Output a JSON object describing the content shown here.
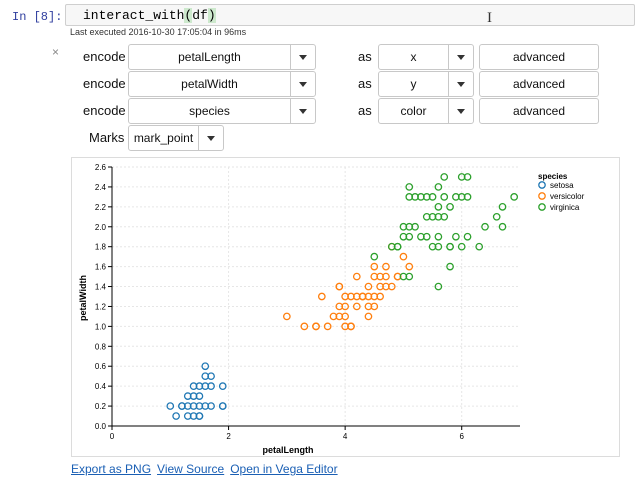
{
  "cell": {
    "prompt": "In [8]:",
    "code_prefix": "interact_with",
    "code_open": "(",
    "code_arg": "df",
    "code_close": ")",
    "exec_info": "Last executed 2016-10-30 17:05:04 in 96ms"
  },
  "widget": {
    "close_glyph": "×",
    "rows": [
      {
        "label": "encode",
        "field": "petalLength",
        "as_label": "as",
        "channel": "x",
        "advanced": "advanced"
      },
      {
        "label": "encode",
        "field": "petalWidth",
        "as_label": "as",
        "channel": "y",
        "advanced": "advanced"
      },
      {
        "label": "encode",
        "field": "species",
        "as_label": "as",
        "channel": "color",
        "advanced": "advanced"
      }
    ],
    "marks_label": "Marks",
    "marks_value": "mark_point"
  },
  "links": {
    "export_png": "Export as PNG",
    "view_source": "View Source",
    "open_vega": "Open in Vega Editor"
  },
  "chart_data": {
    "type": "scatter",
    "xlabel": "petalLength",
    "ylabel": "petalWidth",
    "xlim": [
      0,
      7
    ],
    "ylim": [
      0,
      2.6
    ],
    "xticks": [
      0,
      2,
      4,
      6
    ],
    "yticks": [
      0.0,
      0.2,
      0.4,
      0.6,
      0.8,
      1.0,
      1.2,
      1.4,
      1.6,
      1.8,
      2.0,
      2.2,
      2.4,
      2.6
    ],
    "grid": true,
    "legend_title": "species",
    "legend_position": "top-right",
    "series": [
      {
        "name": "setosa",
        "color": "#1f77b4",
        "points": [
          [
            1.0,
            0.2
          ],
          [
            1.1,
            0.1
          ],
          [
            1.2,
            0.2
          ],
          [
            1.3,
            0.2
          ],
          [
            1.4,
            0.2
          ],
          [
            1.5,
            0.2
          ],
          [
            1.6,
            0.2
          ],
          [
            1.7,
            0.2
          ],
          [
            1.9,
            0.2
          ],
          [
            1.3,
            0.3
          ],
          [
            1.4,
            0.3
          ],
          [
            1.5,
            0.3
          ],
          [
            1.4,
            0.4
          ],
          [
            1.5,
            0.4
          ],
          [
            1.6,
            0.4
          ],
          [
            1.7,
            0.4
          ],
          [
            1.9,
            0.4
          ],
          [
            1.3,
            0.1
          ],
          [
            1.4,
            0.1
          ],
          [
            1.5,
            0.1
          ],
          [
            1.6,
            0.5
          ],
          [
            1.7,
            0.5
          ],
          [
            1.6,
            0.6
          ],
          [
            1.2,
            0.2
          ],
          [
            1.5,
            0.1
          ],
          [
            1.9,
            0.2
          ]
        ]
      },
      {
        "name": "versicolor",
        "color": "#ff7f0e",
        "points": [
          [
            3.0,
            1.1
          ],
          [
            3.3,
            1.0
          ],
          [
            3.5,
            1.0
          ],
          [
            3.7,
            1.0
          ],
          [
            4.0,
            1.0
          ],
          [
            4.1,
            1.0
          ],
          [
            3.6,
            1.3
          ],
          [
            3.5,
            1.0
          ],
          [
            3.8,
            1.1
          ],
          [
            3.9,
            1.1
          ],
          [
            4.0,
            1.1
          ],
          [
            3.9,
            1.2
          ],
          [
            4.0,
            1.2
          ],
          [
            4.2,
            1.2
          ],
          [
            4.4,
            1.2
          ],
          [
            4.5,
            1.2
          ],
          [
            3.9,
            1.4
          ],
          [
            4.0,
            1.3
          ],
          [
            4.1,
            1.3
          ],
          [
            4.2,
            1.3
          ],
          [
            4.3,
            1.3
          ],
          [
            4.4,
            1.3
          ],
          [
            4.5,
            1.3
          ],
          [
            4.6,
            1.3
          ],
          [
            4.7,
            1.4
          ],
          [
            4.8,
            1.4
          ],
          [
            4.9,
            1.5
          ],
          [
            4.5,
            1.5
          ],
          [
            4.6,
            1.5
          ],
          [
            4.7,
            1.5
          ],
          [
            4.8,
            1.8
          ],
          [
            4.5,
            1.6
          ],
          [
            4.7,
            1.6
          ],
          [
            5.1,
            1.6
          ],
          [
            4.9,
            1.5
          ],
          [
            5.0,
            1.7
          ],
          [
            4.1,
            1.0
          ],
          [
            4.4,
            1.4
          ],
          [
            4.3,
            1.3
          ],
          [
            4.2,
            1.5
          ],
          [
            3.9,
            1.4
          ],
          [
            4.4,
            1.1
          ],
          [
            4.6,
            1.4
          ]
        ]
      },
      {
        "name": "virginica",
        "color": "#2ca02c",
        "points": [
          [
            4.5,
            1.7
          ],
          [
            4.8,
            1.8
          ],
          [
            4.9,
            1.8
          ],
          [
            5.0,
            1.5
          ],
          [
            5.1,
            1.5
          ],
          [
            5.6,
            1.4
          ],
          [
            5.0,
            2.0
          ],
          [
            5.1,
            1.9
          ],
          [
            5.1,
            2.0
          ],
          [
            5.1,
            2.3
          ],
          [
            5.1,
            2.4
          ],
          [
            5.2,
            2.0
          ],
          [
            5.2,
            2.3
          ],
          [
            5.3,
            1.9
          ],
          [
            5.3,
            2.3
          ],
          [
            5.4,
            2.1
          ],
          [
            5.4,
            2.3
          ],
          [
            5.5,
            1.8
          ],
          [
            5.5,
            2.1
          ],
          [
            5.5,
            2.3
          ],
          [
            5.6,
            1.8
          ],
          [
            5.6,
            2.1
          ],
          [
            5.6,
            2.2
          ],
          [
            5.6,
            2.4
          ],
          [
            5.7,
            2.1
          ],
          [
            5.7,
            2.3
          ],
          [
            5.7,
            2.5
          ],
          [
            5.8,
            1.6
          ],
          [
            5.8,
            1.8
          ],
          [
            5.8,
            2.2
          ],
          [
            5.9,
            1.9
          ],
          [
            5.9,
            2.3
          ],
          [
            6.0,
            1.8
          ],
          [
            6.0,
            2.3
          ],
          [
            6.0,
            2.5
          ],
          [
            6.1,
            1.9
          ],
          [
            6.1,
            2.3
          ],
          [
            6.1,
            2.5
          ],
          [
            6.3,
            1.8
          ],
          [
            6.4,
            2.0
          ],
          [
            6.6,
            2.1
          ],
          [
            6.7,
            2.0
          ],
          [
            6.7,
            2.2
          ],
          [
            6.9,
            2.3
          ],
          [
            5.0,
            1.9
          ],
          [
            4.9,
            1.8
          ],
          [
            5.6,
            1.9
          ],
          [
            5.8,
            1.8
          ],
          [
            5.4,
            1.9
          ]
        ]
      }
    ]
  }
}
